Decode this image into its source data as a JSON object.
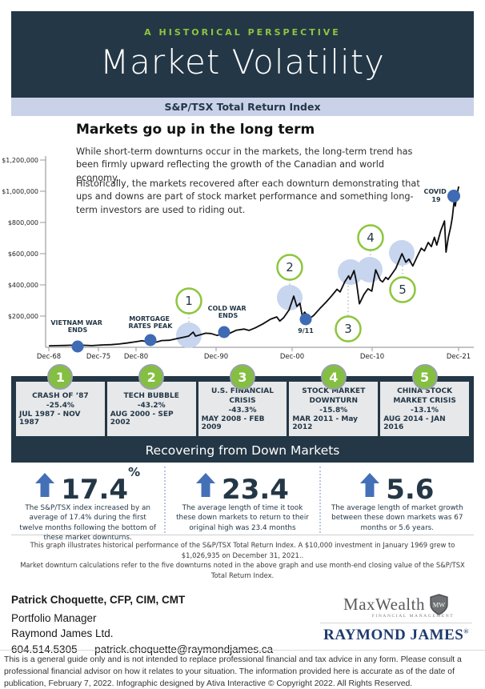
{
  "header": {
    "eyebrow": "A HISTORICAL PERSPECTIVE",
    "title": "Market Volatility",
    "subtitle": "S&P/TSX Total Return Index"
  },
  "intro": {
    "heading": "Markets go up in the long term",
    "p1": "While short-term downturns occur in the markets, the long-term trend has been firmly upward reflecting the growth of the Canadian and world economy.",
    "p2": "Historically, the markets recovered after each downturn demonstrating that ups and downs are part of stock market performance and something long-term investors are used to riding out."
  },
  "chart_data": {
    "type": "line",
    "title": "S&P/TSX Total Return Index",
    "xlabel": "",
    "ylabel": "",
    "ylim": [
      0,
      1240000
    ],
    "grid": false,
    "y_tick_labels": [
      "$1,200,000",
      "$1,000,000",
      "$800,000",
      "$600,000",
      "$400,000",
      "$200,000"
    ],
    "x_tick_labels": [
      "Dec-68",
      "Dec-75",
      "Dec-80",
      "Dec-90",
      "Dec-00",
      "Dec-10",
      "Dec-21"
    ],
    "series": [
      {
        "name": "Growth of $10,000 invested January 1969 (grew to $1,026,935 by December 31, 2021)",
        "points": [
          [
            1969.0,
            10000
          ],
          [
            1970,
            11000
          ],
          [
            1971,
            12000
          ],
          [
            1972,
            13500
          ],
          [
            1972.8,
            15000
          ],
          [
            1973.5,
            13000
          ],
          [
            1974.5,
            10800
          ],
          [
            1975.3,
            13500
          ],
          [
            1976,
            15500
          ],
          [
            1977,
            17000
          ],
          [
            1978,
            21000
          ],
          [
            1979,
            27000
          ],
          [
            1980.2,
            36000
          ],
          [
            1981.0,
            42000
          ],
          [
            1981.8,
            33000
          ],
          [
            1982.6,
            30000
          ],
          [
            1983.5,
            43000
          ],
          [
            1984.5,
            45000
          ],
          [
            1985.5,
            56000
          ],
          [
            1986.5,
            66000
          ],
          [
            1987.0,
            72000
          ],
          [
            1987.6,
            97000
          ],
          [
            1987.9,
            72000
          ],
          [
            1988.5,
            80000
          ],
          [
            1989.2,
            90000
          ],
          [
            1989.9,
            88000
          ],
          [
            1990.7,
            76000
          ],
          [
            1991.5,
            90000
          ],
          [
            1992.2,
            87000
          ],
          [
            1993.2,
            110000
          ],
          [
            1994.2,
            117000
          ],
          [
            1994.8,
            108000
          ],
          [
            1995.6,
            124000
          ],
          [
            1996.6,
            150000
          ],
          [
            1997.6,
            180000
          ],
          [
            1998.4,
            195000
          ],
          [
            1998.8,
            168000
          ],
          [
            1999.3,
            190000
          ],
          [
            2000.0,
            240000
          ],
          [
            2000.6,
            328000
          ],
          [
            2001.0,
            262000
          ],
          [
            2001.4,
            282000
          ],
          [
            2001.7,
            200000
          ],
          [
            2002.0,
            225000
          ],
          [
            2002.7,
            186000
          ],
          [
            2003.2,
            205000
          ],
          [
            2004.0,
            250000
          ],
          [
            2004.8,
            290000
          ],
          [
            2005.5,
            330000
          ],
          [
            2006.2,
            372000
          ],
          [
            2006.6,
            355000
          ],
          [
            2007.2,
            420000
          ],
          [
            2007.7,
            458000
          ],
          [
            2007.9,
            435000
          ],
          [
            2008.4,
            492000
          ],
          [
            2008.7,
            420000
          ],
          [
            2009.1,
            279000
          ],
          [
            2009.7,
            340000
          ],
          [
            2010.2,
            375000
          ],
          [
            2010.7,
            360000
          ],
          [
            2011.2,
            497000
          ],
          [
            2011.8,
            430000
          ],
          [
            2012.1,
            419000
          ],
          [
            2012.5,
            448000
          ],
          [
            2012.8,
            435000
          ],
          [
            2013.3,
            470000
          ],
          [
            2013.8,
            505000
          ],
          [
            2014.6,
            600000
          ],
          [
            2015.1,
            545000
          ],
          [
            2015.5,
            565000
          ],
          [
            2016.0,
            521000
          ],
          [
            2016.6,
            585000
          ],
          [
            2017.1,
            635000
          ],
          [
            2017.5,
            618000
          ],
          [
            2018.0,
            672000
          ],
          [
            2018.4,
            645000
          ],
          [
            2018.8,
            705000
          ],
          [
            2019.1,
            655000
          ],
          [
            2019.6,
            745000
          ],
          [
            2020.1,
            810000
          ],
          [
            2020.3,
            610000
          ],
          [
            2020.6,
            705000
          ],
          [
            2020.9,
            770000
          ],
          [
            2021.1,
            830000
          ],
          [
            2021.35,
            940000
          ],
          [
            2021.5,
            905000
          ],
          [
            2021.7,
            975000
          ],
          [
            2021.92,
            1026935
          ]
        ]
      }
    ],
    "annotations": {
      "vietnam": [
        "VIETNAM WAR",
        "ENDS"
      ],
      "mortgage": [
        "MORTGAGE",
        "RATES PEAK"
      ],
      "coldwar": [
        "COLD WAR",
        "ENDS"
      ],
      "nine11": "9/11",
      "covid": [
        "COVID",
        "19"
      ]
    }
  },
  "events": [
    {
      "num": "1",
      "title": "CRASH OF ’87",
      "pct": "-25.4%",
      "dates": "JUL 1987 - NOV 1987"
    },
    {
      "num": "2",
      "title": "TECH BUBBLE",
      "pct": "-43.2%",
      "dates": "AUG 2000 - SEP 2002"
    },
    {
      "num": "3",
      "title": "U.S. FINANCIAL CRISIS",
      "pct": "-43.3%",
      "dates": "MAY 2008 - FEB 2009"
    },
    {
      "num": "4",
      "title": "STOCK MARKET DOWNTURN",
      "pct": "-15.8%",
      "dates": "MAR 2011 - May 2012"
    },
    {
      "num": "5",
      "title": "CHINA STOCK MARKET CRISIS",
      "pct": "-13.1%",
      "dates": "AUG 2014 - JAN 2016"
    }
  ],
  "recovering": {
    "title": "Recovering from Down Markets",
    "stats": [
      {
        "value": "17.4",
        "suffix": "%",
        "desc": "The S&P/TSX index increased by an average of 17.4% during the first twelve months following the bottom of these market downturns."
      },
      {
        "value": "23.4",
        "suffix": "",
        "desc": "The average length of time it took these down markets to return to their original high was 23.4 months"
      },
      {
        "value": "5.6",
        "suffix": "",
        "desc": "The average length of market growth between these down markets was 67 months or 5.6 years."
      }
    ]
  },
  "graph_note": {
    "line1": "This graph illustrates historical performance of the S&P/TSX Total Return Index. A $10,000 investment in January 1969 grew to $1,026,935 on December 31, 2021..",
    "line2": "Market downturn calculations refer to the five downturns noted in the above graph and use month-end closing value of the S&P/TSX  Total Return Index."
  },
  "footer": {
    "name": "Patrick Choquette, CFP, CIM, CMT",
    "role": "Portfolio Manager",
    "company": "Raymond James Ltd.",
    "phone": "604.514.5305",
    "email": "patrick.choquette@raymondjames.ca",
    "maxwealth": "MaxWealth",
    "maxwealth_sub": "FINANCIAL MANAGEMENT",
    "shield_monogram": "MW",
    "raymond_james": "RAYMOND JAMES",
    "reg_mark": "®"
  },
  "legal": "This is a general guide only and is not intended to replace professional financial and tax advice in any form. Please consult a professional financial advisor on how it relates to your situation. The information provided here is accurate as of the date of publication, February 7, 2022. Infographic designed by Ativa Interactive © Copyright 2022. All Rights Reserved.",
  "colors": {
    "navy": "#243746",
    "green": "#8dc63f",
    "lavender": "#c9d2e8",
    "blue_marker": "#3f6bb4",
    "light_marker": "#c7d5ef",
    "rj_blue": "#1f3a70"
  }
}
